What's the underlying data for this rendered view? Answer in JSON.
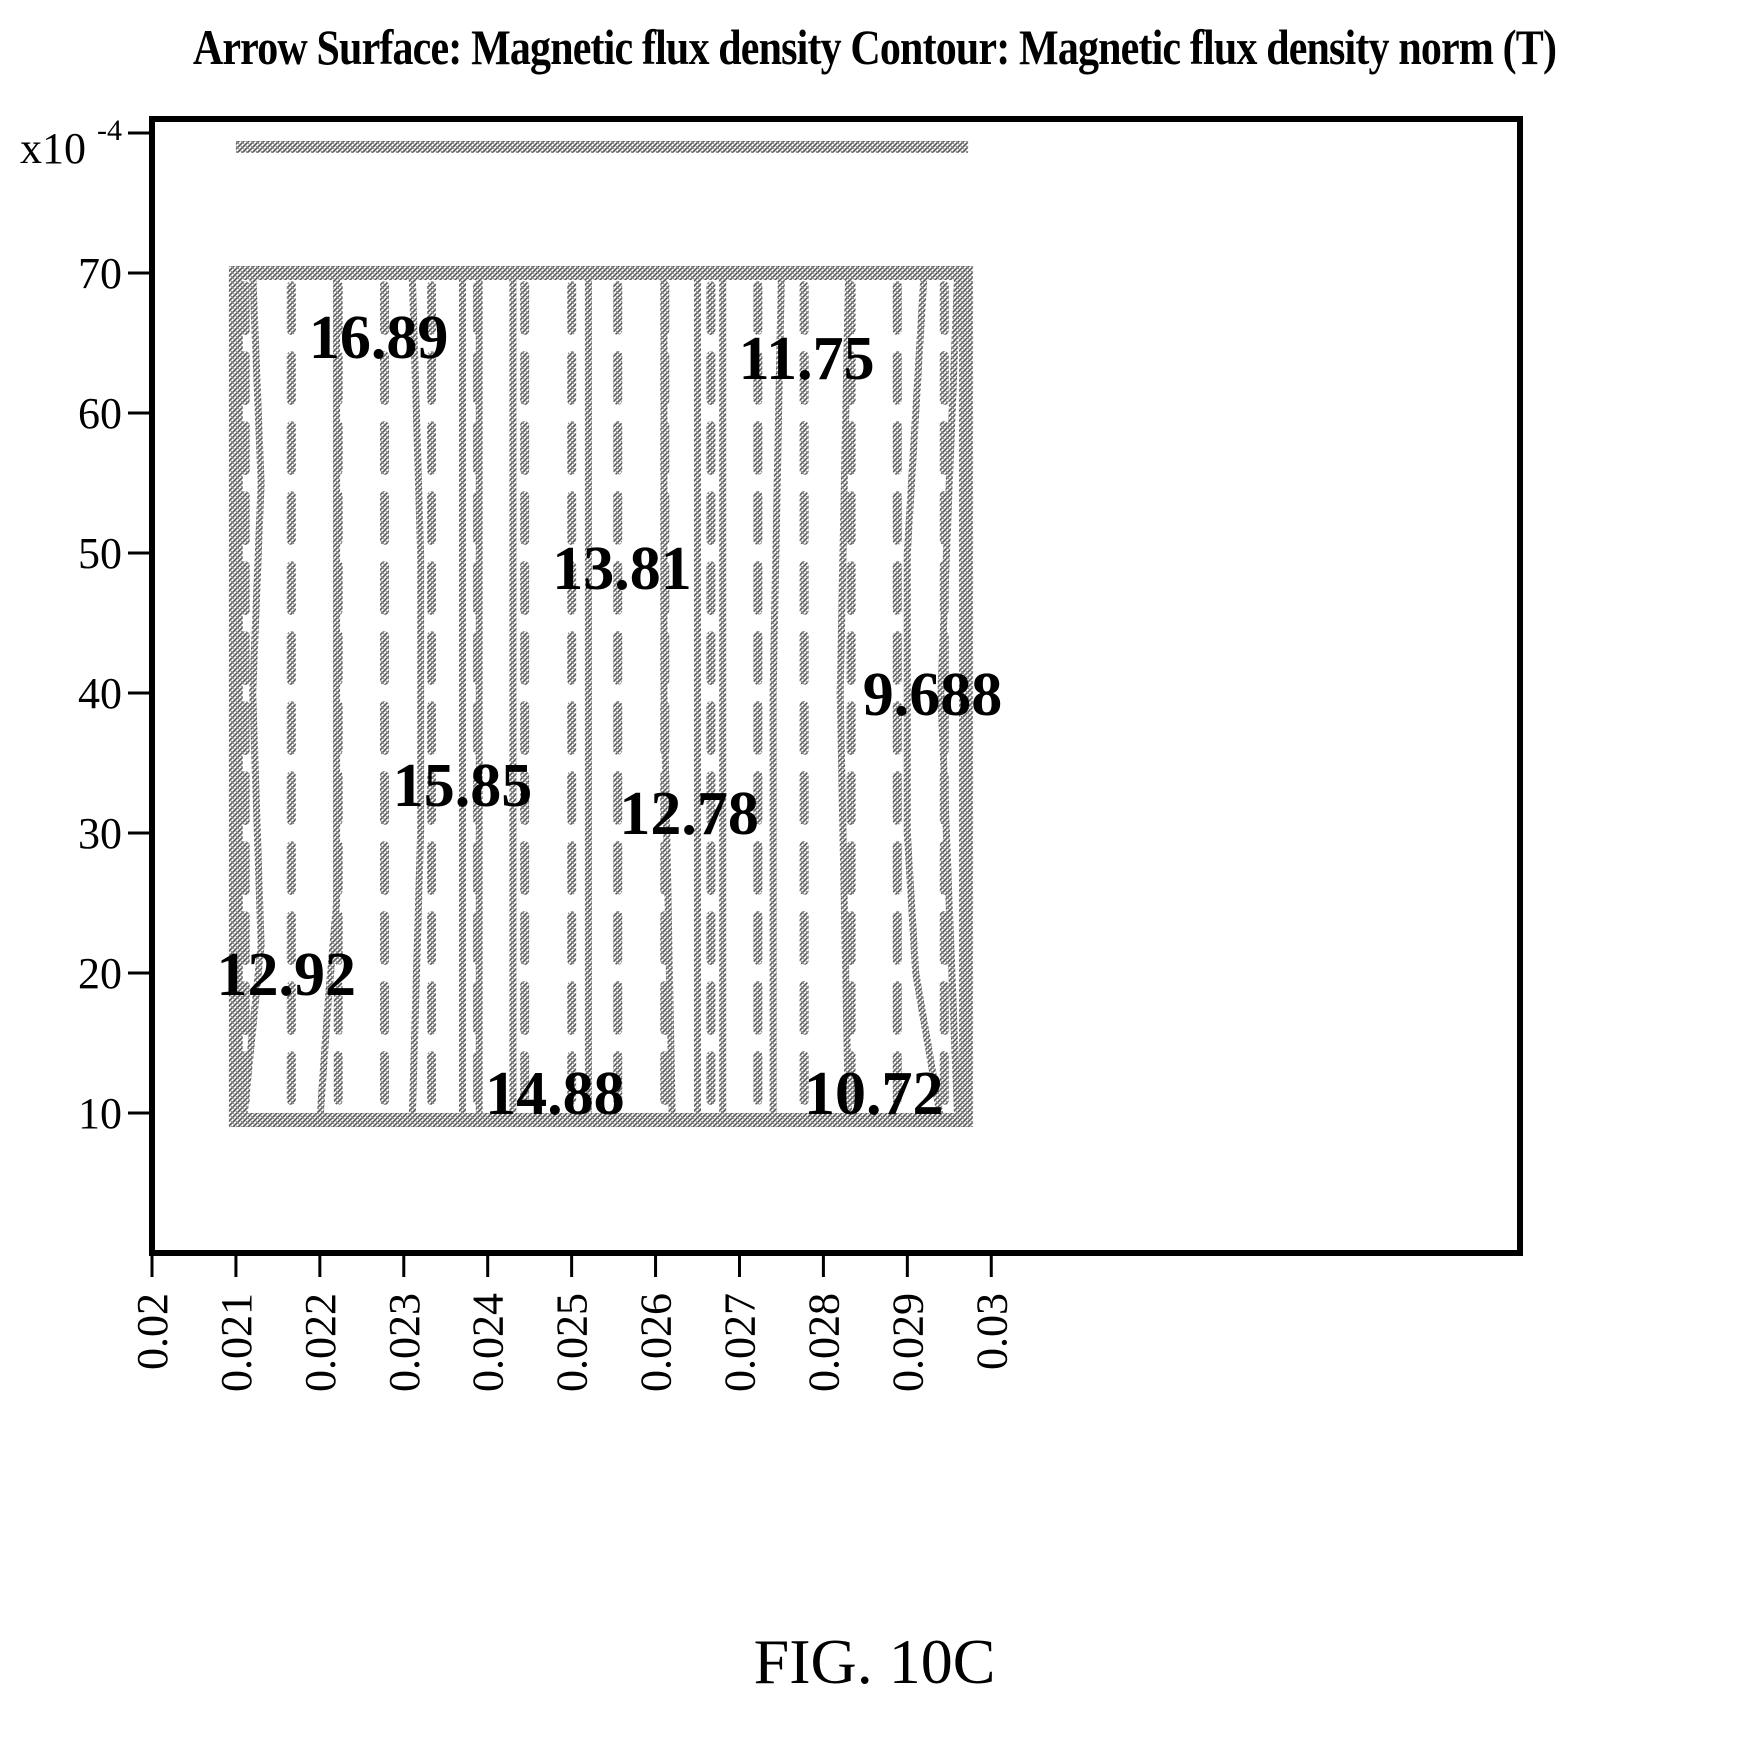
{
  "chart_data": {
    "type": "contour",
    "title": "Arrow Surface: Magnetic flux density Contour: Magnetic flux density norm (T)",
    "caption": "FIG. 10C",
    "y_exponent_label": "x10",
    "y_exponent_power": "-4",
    "xlim": [
      0.02,
      0.0363
    ],
    "ylim": [
      0,
      81
    ],
    "x_ticks": [
      {
        "value": 0.02,
        "label": "0.02"
      },
      {
        "value": 0.021,
        "label": "0.021"
      },
      {
        "value": 0.022,
        "label": "0.022"
      },
      {
        "value": 0.023,
        "label": "0.023"
      },
      {
        "value": 0.024,
        "label": "0.024"
      },
      {
        "value": 0.025,
        "label": "0.025"
      },
      {
        "value": 0.026,
        "label": "0.026"
      },
      {
        "value": 0.027,
        "label": "0.027"
      },
      {
        "value": 0.028,
        "label": "0.028"
      },
      {
        "value": 0.029,
        "label": "0.029"
      },
      {
        "value": 0.03,
        "label": "0.03"
      }
    ],
    "y_ticks": [
      {
        "value": 10,
        "label": "10"
      },
      {
        "value": 20,
        "label": "20"
      },
      {
        "value": 30,
        "label": "30"
      },
      {
        "value": 40,
        "label": "40"
      },
      {
        "value": 50,
        "label": "50"
      },
      {
        "value": 60,
        "label": "60"
      },
      {
        "value": 70,
        "label": "70"
      }
    ],
    "grid": false,
    "outer_region": {
      "x": [
        0.02,
        0.0363
      ],
      "y": [
        0,
        80
      ]
    },
    "inner_region": {
      "x": [
        0.021,
        0.0297
      ],
      "y": [
        9.5,
        70
      ]
    },
    "contour_labels": [
      {
        "text": "16.89",
        "x": 0.0227,
        "y": 65.5
      },
      {
        "text": "11.75",
        "x": 0.0278,
        "y": 64
      },
      {
        "text": "13.81",
        "x": 0.0256,
        "y": 49
      },
      {
        "text": "9.688",
        "x": 0.0293,
        "y": 40
      },
      {
        "text": "15.85",
        "x": 0.0237,
        "y": 33.5
      },
      {
        "text": "12.78",
        "x": 0.0264,
        "y": 31.5
      },
      {
        "text": "12.92",
        "x": 0.0216,
        "y": 20
      },
      {
        "text": "14.88",
        "x": 0.0248,
        "y": 11.5
      },
      {
        "text": "10.72",
        "x": 0.0286,
        "y": 11.5
      }
    ],
    "contour_lines": [
      {
        "points": [
          [
            0.0212,
            70
          ],
          [
            0.0213,
            55
          ],
          [
            0.0212,
            40
          ],
          [
            0.0213,
            22
          ],
          [
            0.0211,
            10
          ]
        ]
      },
      {
        "points": [
          [
            0.0222,
            70
          ],
          [
            0.0222,
            40
          ],
          [
            0.0222,
            25
          ],
          [
            0.0221,
            18
          ],
          [
            0.022,
            9.5
          ]
        ]
      },
      {
        "points": [
          [
            0.0231,
            70
          ],
          [
            0.0232,
            50
          ],
          [
            0.0232,
            30
          ],
          [
            0.0231,
            9.5
          ]
        ]
      },
      {
        "points": [
          [
            0.0237,
            70
          ],
          [
            0.0237,
            40
          ],
          [
            0.0237,
            9.5
          ]
        ]
      },
      {
        "points": [
          [
            0.0239,
            70
          ],
          [
            0.0239,
            40
          ],
          [
            0.0239,
            9.5
          ]
        ]
      },
      {
        "points": [
          [
            0.0243,
            70
          ],
          [
            0.0243,
            40
          ],
          [
            0.0243,
            9.5
          ]
        ]
      },
      {
        "points": [
          [
            0.0252,
            70
          ],
          [
            0.0252,
            40
          ],
          [
            0.0252,
            9.5
          ]
        ]
      },
      {
        "points": [
          [
            0.0261,
            70
          ],
          [
            0.0261,
            40
          ],
          [
            0.0262,
            9.5
          ]
        ]
      },
      {
        "points": [
          [
            0.0265,
            70
          ],
          [
            0.0265,
            40
          ],
          [
            0.0265,
            9.5
          ]
        ]
      },
      {
        "points": [
          [
            0.0268,
            70
          ],
          [
            0.0268,
            40
          ],
          [
            0.0268,
            9.5
          ]
        ]
      },
      {
        "points": [
          [
            0.0275,
            70
          ],
          [
            0.0274,
            40
          ],
          [
            0.0274,
            9.5
          ]
        ]
      },
      {
        "points": [
          [
            0.0283,
            70
          ],
          [
            0.0282,
            40
          ],
          [
            0.0283,
            9.5
          ]
        ]
      },
      {
        "points": [
          [
            0.0292,
            70
          ],
          [
            0.029,
            50
          ],
          [
            0.029,
            30
          ],
          [
            0.0291,
            20
          ],
          [
            0.0294,
            9.5
          ]
        ]
      },
      {
        "points": [
          [
            0.0296,
            70
          ],
          [
            0.0294,
            40
          ],
          [
            0.0296,
            9.5
          ]
        ]
      }
    ],
    "arrow_columns_x": [
      0.02111,
      0.02166,
      0.02222,
      0.02277,
      0.02333,
      0.02388,
      0.02444,
      0.025,
      0.02555,
      0.02611,
      0.02666,
      0.02722,
      0.02777,
      0.02833,
      0.02888,
      0.02944
    ],
    "arrow_rows_y": [
      12.5,
      17.5,
      22.5,
      27.5,
      32.5,
      37.5,
      42.5,
      47.5,
      52.5,
      57.5,
      62.5,
      67.5
    ],
    "arrow_length": 3.2,
    "colors": {
      "ink": "#000000",
      "hatch": "#6e6e6e",
      "background": "#ffffff"
    }
  }
}
